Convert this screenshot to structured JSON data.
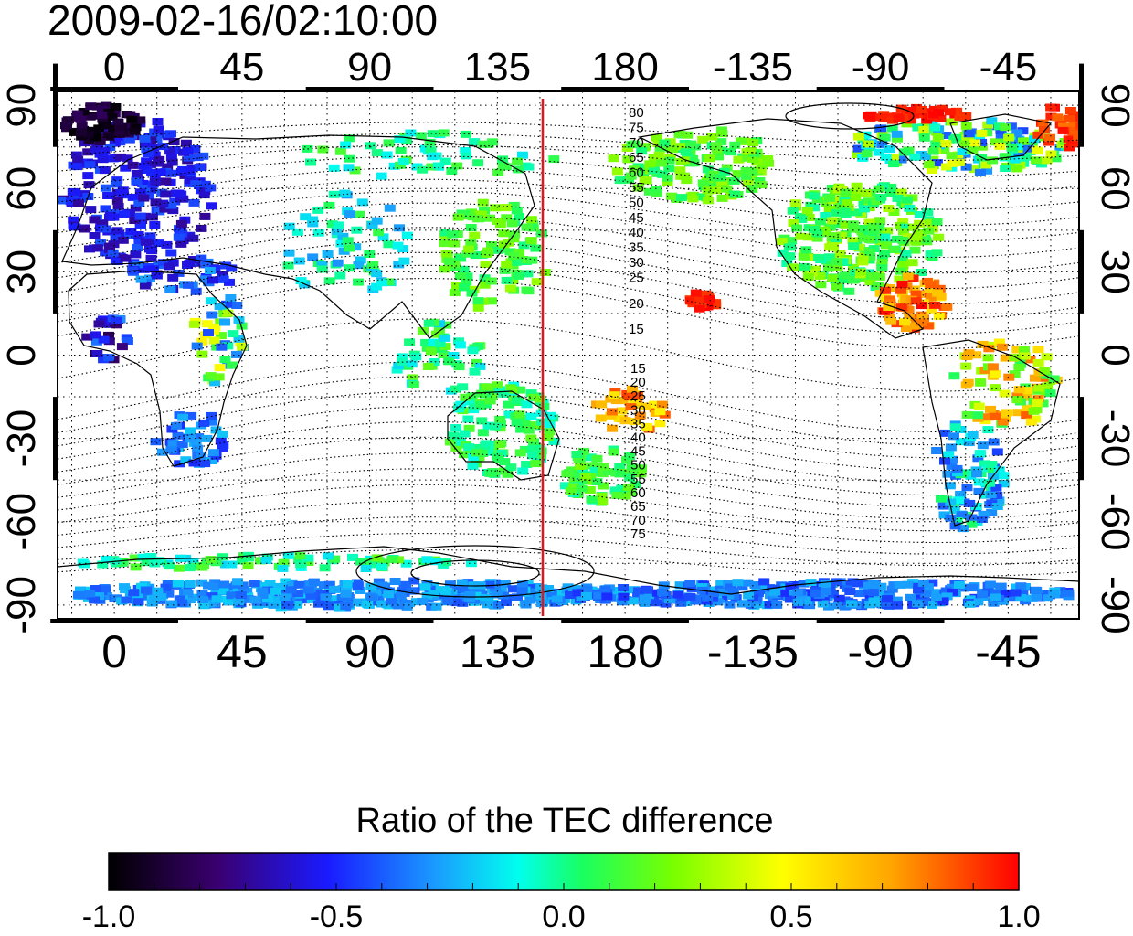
{
  "title": "2009-02-16/02:10:00",
  "map": {
    "x_ticks": [
      "0",
      "45",
      "90",
      "135",
      "180",
      "-135",
      "-90",
      "-45"
    ],
    "y_ticks": [
      "90",
      "60",
      "30",
      "0",
      "-30",
      "-60",
      "-90"
    ],
    "lon_range": [
      -20,
      340
    ],
    "lat_range": [
      -95,
      95
    ],
    "marker_longitude": 148,
    "marker_color": "#e8141b",
    "contour_labels_north": [
      "80",
      "75",
      "70",
      "65",
      "60",
      "55",
      "50",
      "45",
      "40",
      "35",
      "30",
      "25",
      "20",
      "15"
    ],
    "contour_labels_south": [
      "15",
      "20",
      "25",
      "30",
      "35",
      "40",
      "45",
      "50",
      "55",
      "60",
      "65",
      "70",
      "75"
    ],
    "grid": "dotted",
    "colormap_note": "scattered TEC-ratio cells"
  },
  "colorbar": {
    "title": "Ratio of the TEC difference",
    "ticks": [
      "-1.0",
      "-0.5",
      "0.0",
      "0.5",
      "1.0"
    ],
    "range": [
      -1.0,
      1.0
    ],
    "stops": [
      "#000000",
      "#3a0070",
      "#1a1aff",
      "#1a9cff",
      "#00ffee",
      "#19ff61",
      "#78ff00",
      "#ffff00",
      "#ffa500",
      "#ff0000"
    ]
  }
}
